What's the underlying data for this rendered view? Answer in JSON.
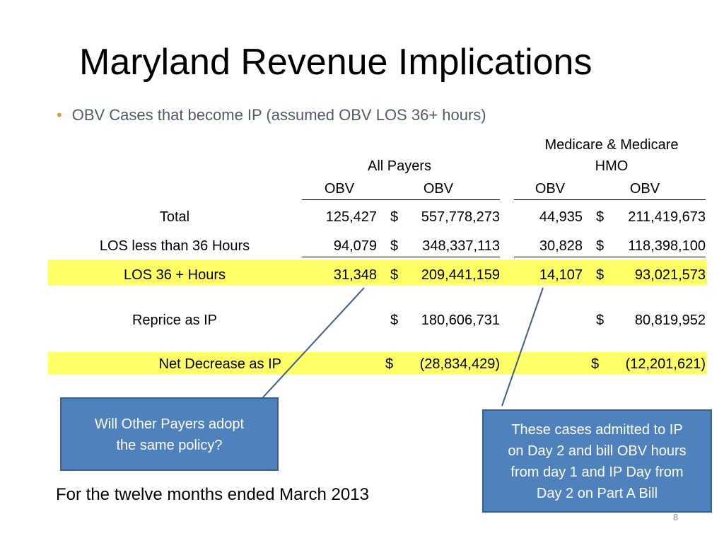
{
  "title": "Maryland Revenue Implications",
  "bullet": "OBV Cases that become IP (assumed OBV LOS 36+ hours)",
  "headers": {
    "group1": "All Payers",
    "group2_line1": "Medicare & Medicare",
    "group2_line2": "HMO",
    "cols": [
      "OBV",
      "OBV",
      "OBV",
      "OBV"
    ]
  },
  "rows": [
    {
      "label": "Total",
      "c1": "125,427",
      "d2": "$",
      "c2": "557,778,273",
      "c3": "44,935",
      "d4": "$",
      "c4": "211,419,673"
    },
    {
      "label": "LOS less than 36 Hours",
      "c1": "94,079",
      "d2": "$",
      "c2": "348,337,113",
      "c3": "30,828",
      "d4": "$",
      "c4": "118,398,100"
    },
    {
      "label": "LOS 36 + Hours",
      "c1": "31,348",
      "d2": "$",
      "c2": "209,441,159",
      "c3": "14,107",
      "d4": "$",
      "c4": "93,021,573"
    },
    {
      "label": "Reprice as IP",
      "d2": "$",
      "c2": "180,606,731",
      "d4": "$",
      "c4": "80,819,952"
    },
    {
      "label": "Net Decrease as IP",
      "d2": "$",
      "c2": "(28,834,429)",
      "d4": "$",
      "c4": "(12,201,621)"
    }
  ],
  "callouts": {
    "left": [
      "Will Other Payers adopt",
      "the same policy?"
    ],
    "right": [
      "These cases admitted to IP",
      "on Day 2 and bill OBV hours",
      "from day 1 and IP Day from",
      "Day 2 on Part A Bill"
    ]
  },
  "footer": "For the twelve months ended March 2013",
  "page_number": "8",
  "colors": {
    "highlight": "#ffff66",
    "callout_fill": "#4f81bd",
    "bullet_dot": "#e59b31",
    "bullet_text": "#4f5b6b"
  }
}
